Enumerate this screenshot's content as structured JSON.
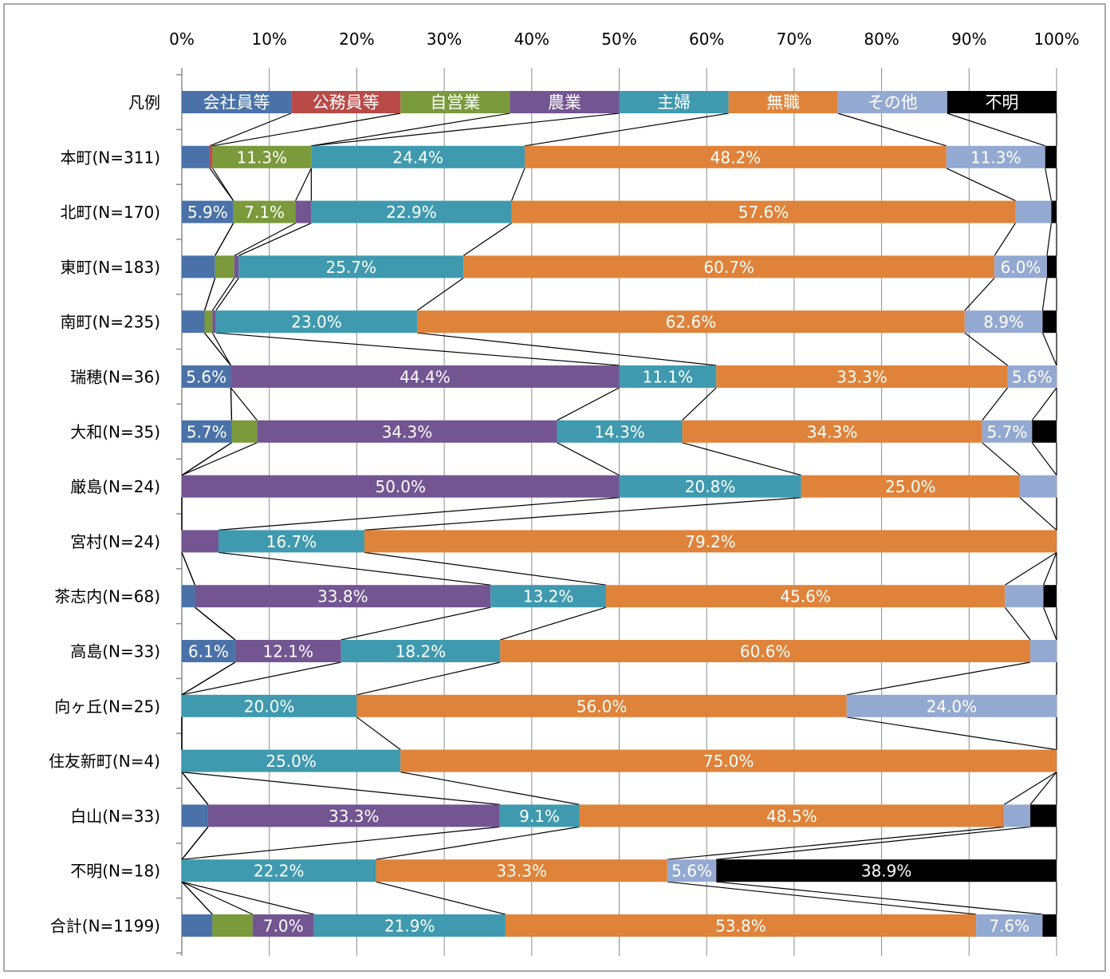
{
  "chart_data": {
    "type": "bar",
    "orientation": "horizontal",
    "stacked": "100%",
    "xlim": [
      0,
      100
    ],
    "x_ticks": [
      "0%",
      "10%",
      "20%",
      "30%",
      "40%",
      "50%",
      "60%",
      "70%",
      "80%",
      "90%",
      "100%"
    ],
    "grid": true,
    "legend_row_label": "凡例",
    "series": [
      {
        "name": "会社員等",
        "color": "#4a72a8"
      },
      {
        "name": "公務員等",
        "color": "#b94a48"
      },
      {
        "name": "自営業",
        "color": "#7a9a3b"
      },
      {
        "name": "農業",
        "color": "#735592"
      },
      {
        "name": "主婦",
        "color": "#3f9aaf"
      },
      {
        "name": "無職",
        "color": "#df833a"
      },
      {
        "name": "その他",
        "color": "#94a9d1"
      },
      {
        "name": "不明",
        "color": "#000000"
      }
    ],
    "categories": [
      "本町(N=311)",
      "北町(N=170)",
      "東町(N=183)",
      "南町(N=235)",
      "瑞穂(N=36)",
      "大和(N=35)",
      "厳島(N=24)",
      "宮村(N=24)",
      "茶志内(N=68)",
      "高島(N=33)",
      "向ヶ丘(N=25)",
      "住友新町(N=4)",
      "白山(N=33)",
      "不明(N=18)",
      "合計(N=1199)"
    ],
    "values": [
      [
        3.2,
        0.3,
        11.3,
        0.0,
        24.4,
        48.2,
        11.3,
        1.3
      ],
      [
        5.9,
        0.0,
        7.1,
        1.8,
        22.9,
        57.6,
        4.1,
        0.6
      ],
      [
        3.8,
        0.0,
        2.2,
        0.5,
        25.7,
        60.7,
        6.0,
        1.1
      ],
      [
        2.6,
        0.0,
        0.9,
        0.4,
        23.0,
        62.6,
        8.9,
        1.6
      ],
      [
        5.6,
        0.0,
        0.0,
        44.4,
        11.1,
        33.3,
        5.6,
        0.0
      ],
      [
        5.7,
        0.0,
        2.9,
        34.3,
        14.3,
        34.3,
        5.7,
        2.8
      ],
      [
        0.0,
        0.0,
        0.0,
        50.0,
        20.8,
        25.0,
        4.2,
        0.0
      ],
      [
        0.0,
        0.0,
        0.0,
        4.2,
        16.7,
        79.2,
        0.0,
        0.0
      ],
      [
        1.5,
        0.0,
        0.0,
        33.8,
        13.2,
        45.6,
        4.4,
        1.5
      ],
      [
        6.1,
        0.0,
        0.0,
        12.1,
        18.2,
        60.6,
        3.0,
        0.0
      ],
      [
        0.0,
        0.0,
        0.0,
        0.0,
        20.0,
        56.0,
        24.0,
        0.0
      ],
      [
        0.0,
        0.0,
        0.0,
        0.0,
        25.0,
        75.0,
        0.0,
        0.0
      ],
      [
        3.0,
        0.0,
        0.0,
        33.3,
        9.1,
        48.5,
        3.0,
        3.0
      ],
      [
        0.0,
        0.0,
        0.0,
        0.0,
        22.2,
        33.3,
        5.6,
        38.9
      ],
      [
        3.5,
        0.0,
        4.6,
        7.0,
        21.9,
        53.8,
        7.6,
        1.6
      ]
    ],
    "data_labels": [
      [
        "",
        "",
        "11.3%",
        "",
        "24.4%",
        "48.2%",
        "11.3%",
        ""
      ],
      [
        "5.9%",
        "",
        "7.1%",
        "",
        "22.9%",
        "57.6%",
        "",
        ""
      ],
      [
        "",
        "",
        "",
        "",
        "25.7%",
        "60.7%",
        "6.0%",
        ""
      ],
      [
        "",
        "",
        "",
        "",
        "23.0%",
        "62.6%",
        "8.9%",
        ""
      ],
      [
        "5.6%",
        "",
        "",
        "44.4%",
        "11.1%",
        "33.3%",
        "5.6%",
        ""
      ],
      [
        "5.7%",
        "",
        "",
        "34.3%",
        "14.3%",
        "34.3%",
        "5.7%",
        ""
      ],
      [
        "",
        "",
        "",
        "50.0%",
        "20.8%",
        "25.0%",
        "",
        ""
      ],
      [
        "",
        "",
        "",
        "",
        "16.7%",
        "79.2%",
        "",
        ""
      ],
      [
        "",
        "",
        "",
        "33.8%",
        "13.2%",
        "45.6%",
        "",
        ""
      ],
      [
        "6.1%",
        "",
        "",
        "12.1%",
        "18.2%",
        "60.6%",
        "",
        ""
      ],
      [
        "",
        "",
        "",
        "",
        "20.0%",
        "56.0%",
        "24.0%",
        ""
      ],
      [
        "",
        "",
        "",
        "",
        "25.0%",
        "75.0%",
        "",
        ""
      ],
      [
        "",
        "",
        "",
        "33.3%",
        "9.1%",
        "48.5%",
        "",
        ""
      ],
      [
        "",
        "",
        "",
        "",
        "22.2%",
        "33.3%",
        "5.6%",
        "38.9%"
      ],
      [
        "",
        "",
        "",
        "7.0%",
        "21.9%",
        "53.8%",
        "7.6%",
        ""
      ]
    ]
  }
}
